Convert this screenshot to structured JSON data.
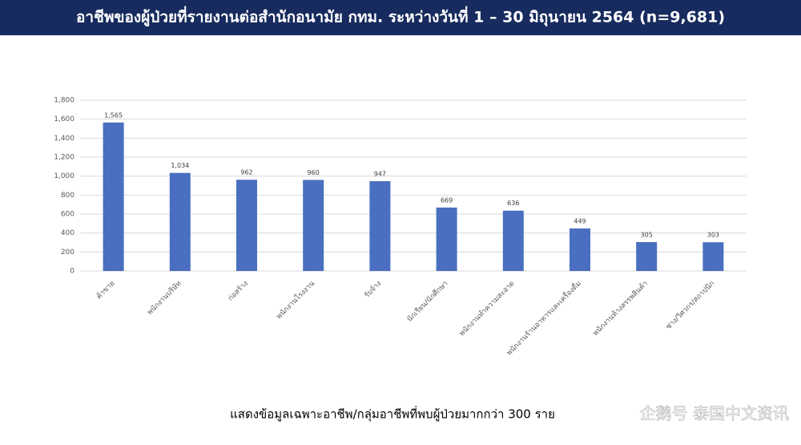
{
  "chart_data": {
    "type": "bar",
    "title": "อาชีพของผู้ป่วยที่รายงานต่อสำนักอนามัย กทม. ระหว่างวันที่ 1 – 30 มิถุนายน 2564 (n=9,681)",
    "categories": [
      "ค้าขาย",
      "พนักงานบริษัท",
      "ก่อสร้าง",
      "พนักงานโรงงาน",
      "รับจ้าง",
      "นักเรียน/นักศึกษา",
      "พนักงานทำความสะอาด",
      "พนักงานร้านอาหารและเครื่องดื่ม",
      "พนักงานห้างสรรพสินค้า",
      "ช่าง/วิศวกร/สถาปนิก"
    ],
    "values": [
      1565,
      1034,
      962,
      960,
      947,
      669,
      636,
      449,
      305,
      303
    ],
    "value_labels": [
      "1,565",
      "1,034",
      "962",
      "960",
      "947",
      "669",
      "636",
      "449",
      "305",
      "303"
    ],
    "color": "#4a6fc0",
    "ylim": [
      0,
      1800
    ],
    "yticks": [
      0,
      200,
      400,
      600,
      800,
      {
        "value": 1000,
        "label": "1,000"
      },
      {
        "value": 1200,
        "label": "1,200"
      },
      {
        "value": 1400,
        "label": "1,400"
      },
      {
        "value": 1600,
        "label": "1,600"
      },
      {
        "value": 1800,
        "label": "1,800"
      }
    ],
    "grid": true,
    "note": "แสดงข้อมูลเฉพาะอาชีพ/กลุ่มอาชีพที่พบผู้ป่วยมากกว่า 300 ราย",
    "watermark": "企鹅号 泰国中文资讯"
  }
}
